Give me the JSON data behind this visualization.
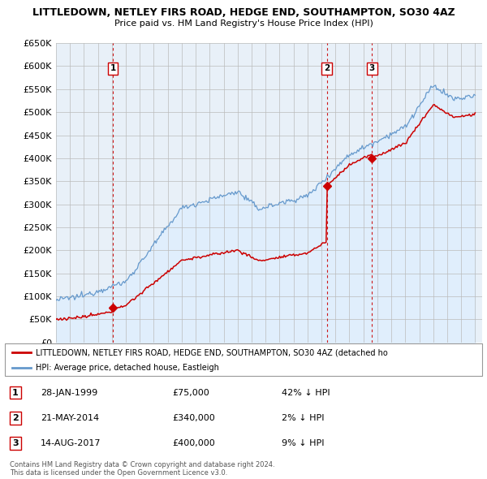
{
  "title": "LITTLEDOWN, NETLEY FIRS ROAD, HEDGE END, SOUTHAMPTON, SO30 4AZ",
  "subtitle": "Price paid vs. HM Land Registry's House Price Index (HPI)",
  "ylim": [
    0,
    650000
  ],
  "ytick_step": 50000,
  "xlim_start": 1995.0,
  "xlim_end": 2025.5,
  "property_color": "#cc0000",
  "hpi_color": "#6699cc",
  "hpi_fill_color": "#ddeeff",
  "bg_color": "#e8f0f8",
  "transaction_color": "#cc0000",
  "transactions": [
    {
      "num": 1,
      "date_str": "28-JAN-1999",
      "date_x": 1999.07,
      "price": 75000
    },
    {
      "num": 2,
      "date_str": "21-MAY-2014",
      "date_x": 2014.38,
      "price": 340000
    },
    {
      "num": 3,
      "date_str": "14-AUG-2017",
      "date_x": 2017.62,
      "price": 400000
    }
  ],
  "legend_property": "LITTLEDOWN, NETLEY FIRS ROAD, HEDGE END, SOUTHAMPTON, SO30 4AZ (detached ho",
  "legend_hpi": "HPI: Average price, detached house, Eastleigh",
  "footnote": "Contains HM Land Registry data © Crown copyright and database right 2024.\nThis data is licensed under the Open Government Licence v3.0.",
  "table_rows": [
    {
      "num": 1,
      "date": "28-JAN-1999",
      "price": "£75,000",
      "change": "42% ↓ HPI"
    },
    {
      "num": 2,
      "date": "21-MAY-2014",
      "price": "£340,000",
      "change": "2% ↓ HPI"
    },
    {
      "num": 3,
      "date": "14-AUG-2017",
      "price": "£400,000",
      "change": "9% ↓ HPI"
    }
  ]
}
